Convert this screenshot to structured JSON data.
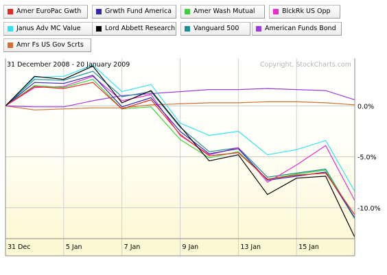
{
  "legend": [
    {
      "label": "Amer EuroPac Gwth",
      "color": "#e8281e"
    },
    {
      "label": "Grwth Fund America",
      "color": "#3227b2"
    },
    {
      "label": "Amer Wash Mutual",
      "color": "#3ad236"
    },
    {
      "label": "BlckRk US Opp",
      "color": "#e72bd0"
    },
    {
      "label": "Janus Adv MC Value",
      "color": "#33e4f0"
    },
    {
      "label": "Lord Abbett Research",
      "color": "#000000"
    },
    {
      "label": "Vanguard 500",
      "color": "#1e8e96"
    },
    {
      "label": "American Funds Bond",
      "color": "#a03be0"
    },
    {
      "label": "Amr Fs US Gov Scrts",
      "color": "#d2702e"
    }
  ],
  "chart_data": {
    "type": "line",
    "date_range": "31 December 2008 - 20 January 2009",
    "copyright": "Copyright, StockCharts.com",
    "x": [
      "31 Dec",
      "2 Jan",
      "5 Jan",
      "6 Jan",
      "7 Jan",
      "8 Jan",
      "9 Jan",
      "12 Jan",
      "13 Jan",
      "14 Jan",
      "15 Jan",
      "16 Jan",
      "20 Jan"
    ],
    "x_tick_labels": [
      "31 Dec",
      "5 Jan",
      "7 Jan",
      "9 Jan",
      "13 Jan",
      "15 Jan"
    ],
    "y_ticks": [
      0,
      -5,
      -10
    ],
    "y_tick_labels": [
      "0.0%",
      "-5.0%",
      "-10.0%"
    ],
    "ylim": [
      -12.9,
      4.4
    ],
    "grid": true,
    "series": [
      {
        "name": "Amer EuroPac Gwth",
        "values": [
          0,
          1.9,
          1.7,
          2.3,
          -0.3,
          0.6,
          -2.8,
          -4.9,
          -4.6,
          -7.2,
          -6.8,
          -6.6,
          -10.7
        ]
      },
      {
        "name": "Grwth Fund America",
        "values": [
          0,
          2.3,
          2.2,
          3.0,
          -0.1,
          0.8,
          -2.5,
          -4.7,
          -4.2,
          -7.3,
          -6.9,
          -6.5,
          -11.0
        ]
      },
      {
        "name": "Amer Wash Mutual",
        "values": [
          0,
          2.0,
          1.8,
          2.6,
          -0.3,
          -0.1,
          -3.3,
          -5.1,
          -4.5,
          -7.2,
          -6.7,
          -6.3,
          -11.1
        ]
      },
      {
        "name": "BlckRk US Opp",
        "values": [
          0,
          1.8,
          1.9,
          2.9,
          0.5,
          1.1,
          -2.9,
          -4.8,
          -4.1,
          -7.5,
          -5.8,
          -3.9,
          -9.3
        ]
      },
      {
        "name": "Janus Adv MC Value",
        "values": [
          0,
          2.8,
          2.9,
          4.0,
          1.4,
          2.1,
          -1.7,
          -2.9,
          -2.5,
          -4.8,
          -4.3,
          -3.4,
          -8.4
        ]
      },
      {
        "name": "Lord Abbett Research",
        "values": [
          0,
          2.9,
          2.6,
          3.9,
          0.3,
          1.5,
          -2.0,
          -5.4,
          -4.8,
          -8.7,
          -7.1,
          -6.9,
          -12.9
        ]
      },
      {
        "name": "Vanguard 500",
        "values": [
          0,
          2.6,
          2.5,
          3.4,
          0.9,
          1.4,
          -2.1,
          -4.5,
          -4.1,
          -7.0,
          -6.6,
          -6.2,
          -11.0
        ]
      },
      {
        "name": "American Funds Bond",
        "values": [
          0,
          -0.1,
          -0.1,
          0.5,
          1.0,
          1.2,
          1.4,
          1.6,
          1.6,
          1.7,
          1.6,
          1.5,
          0.6
        ]
      },
      {
        "name": "Amr Fs US Gov Scrts",
        "values": [
          0,
          -0.4,
          -0.3,
          -0.2,
          -0.2,
          0.1,
          0.2,
          0.3,
          0.3,
          0.4,
          0.4,
          0.3,
          0.1
        ]
      }
    ]
  }
}
